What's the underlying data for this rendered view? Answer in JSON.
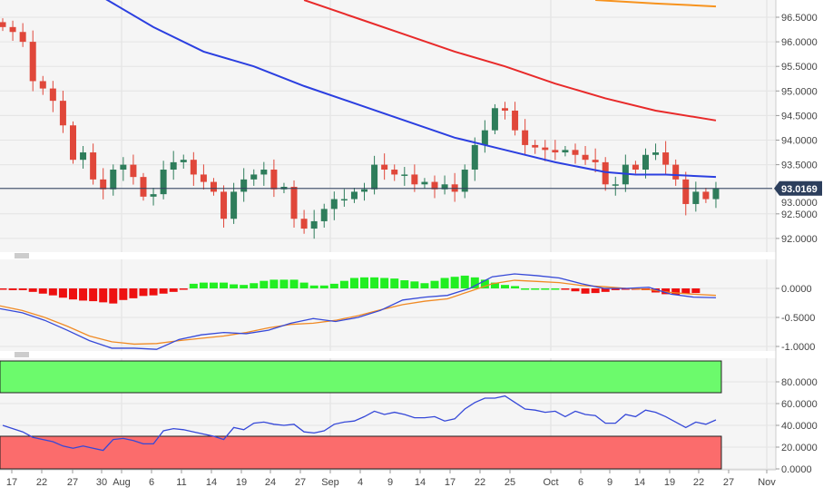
{
  "chart_data": [
    {
      "type": "candlestick",
      "title": "",
      "price_axis_ticks": [
        "96.5000",
        "96.0000",
        "95.5000",
        "95.0000",
        "94.5000",
        "94.0000",
        "93.5000",
        "93.0000",
        "92.5000",
        "92.0000"
      ],
      "price_axis_values": [
        96.5,
        96.0,
        95.5,
        95.0,
        94.5,
        94.0,
        93.5,
        93.0,
        92.5,
        92.0
      ],
      "ylim": [
        91.7,
        96.85
      ],
      "current_price_label": "93.0169",
      "current_price": 93.0169,
      "x_tick_labels": [
        "17",
        "22",
        "27",
        "30",
        "Aug",
        "6",
        "11",
        "14",
        "19",
        "24",
        "27",
        "Sep",
        "4",
        "9",
        "14",
        "17",
        "22",
        "25",
        "Oct",
        "6",
        "9",
        "14",
        "19",
        "22",
        "27",
        "Nov"
      ],
      "closes": [
        96.3,
        96.2,
        96.0,
        95.2,
        95.05,
        94.8,
        94.3,
        93.6,
        93.75,
        93.2,
        93.0,
        93.4,
        93.5,
        93.25,
        92.85,
        92.9,
        93.4,
        93.55,
        93.6,
        93.3,
        93.15,
        92.95,
        92.4,
        92.95,
        93.2,
        93.3,
        93.4,
        93.0,
        93.05,
        92.4,
        92.2,
        92.35,
        92.6,
        92.8,
        92.8,
        92.95,
        93.0,
        93.5,
        93.4,
        93.3,
        93.3,
        93.1,
        93.15,
        93.0,
        93.1,
        92.95,
        93.4,
        93.9,
        94.2,
        94.65,
        94.6,
        94.2,
        93.9,
        93.85,
        93.8,
        93.75,
        93.8,
        93.7,
        93.6,
        93.55,
        93.1,
        93.1,
        93.5,
        93.4,
        93.7,
        93.75,
        93.5,
        93.2,
        92.7,
        92.95,
        92.8,
        93.02
      ],
      "first_open": 96.4,
      "moving_averages": [
        {
          "name": "ma-blue",
          "color": "#2b3fe0",
          "points": [
            [
              10,
              96.9
            ],
            [
              15,
              96.3
            ],
            [
              20,
              95.8
            ],
            [
              25,
              95.5
            ],
            [
              30,
              95.1
            ],
            [
              35,
              94.75
            ],
            [
              40,
              94.4
            ],
            [
              45,
              94.05
            ],
            [
              50,
              93.8
            ],
            [
              55,
              93.55
            ],
            [
              60,
              93.35
            ],
            [
              63,
              93.3
            ],
            [
              66,
              93.3
            ],
            [
              71,
              93.25
            ]
          ]
        },
        {
          "name": "ma-red",
          "color": "#e82a2a",
          "points": [
            [
              30,
              96.85
            ],
            [
              35,
              96.5
            ],
            [
              40,
              96.15
            ],
            [
              45,
              95.8
            ],
            [
              50,
              95.5
            ],
            [
              55,
              95.15
            ],
            [
              60,
              94.85
            ],
            [
              65,
              94.6
            ],
            [
              71,
              94.4
            ]
          ]
        },
        {
          "name": "ma-orange",
          "color": "#f7931e",
          "points": [
            [
              59,
              96.85
            ],
            [
              65,
              96.78
            ],
            [
              71,
              96.72
            ]
          ]
        }
      ],
      "colors": {
        "up": "#2e7d5b",
        "down": "#e0473a",
        "price_line": "#2c3e5c"
      }
    },
    {
      "type": "macd",
      "axis_ticks": [
        "0.0000",
        "-0.5000",
        "-1.0000"
      ],
      "axis_values": [
        0,
        -0.5,
        -1.0
      ],
      "ylim": [
        -1.1,
        0.5
      ],
      "macd_line": [
        -0.35,
        -0.42,
        -0.55,
        -0.72,
        -0.9,
        -1.03,
        -1.03,
        -1.05,
        -0.88,
        -0.8,
        -0.76,
        -0.78,
        -0.72,
        -0.6,
        -0.52,
        -0.57,
        -0.5,
        -0.38,
        -0.2,
        -0.15,
        -0.12,
        0.0,
        0.2,
        0.25,
        0.22,
        0.18,
        0.08,
        0.0,
        0.0,
        0.02,
        -0.1,
        -0.15,
        -0.16
      ],
      "signal_line": [
        -0.3,
        -0.38,
        -0.5,
        -0.65,
        -0.82,
        -0.92,
        -0.96,
        -0.95,
        -0.9,
        -0.86,
        -0.82,
        -0.76,
        -0.68,
        -0.62,
        -0.6,
        -0.55,
        -0.47,
        -0.37,
        -0.28,
        -0.22,
        -0.18,
        -0.05,
        0.08,
        0.14,
        0.12,
        0.1,
        0.05,
        0.03,
        0.0,
        -0.02,
        -0.07,
        -0.1,
        -0.12
      ],
      "histogram": [
        -0.02,
        -0.03,
        -0.03,
        -0.06,
        -0.09,
        -0.12,
        -0.16,
        -0.19,
        -0.21,
        -0.22,
        -0.24,
        -0.26,
        -0.2,
        -0.17,
        -0.13,
        -0.12,
        -0.09,
        -0.06,
        -0.02,
        0.08,
        0.1,
        0.1,
        0.1,
        0.07,
        0.06,
        0.09,
        0.13,
        0.15,
        0.15,
        0.15,
        0.1,
        0.05,
        0.05,
        0.08,
        0.13,
        0.18,
        0.19,
        0.19,
        0.18,
        0.17,
        0.14,
        0.12,
        0.09,
        0.13,
        0.18,
        0.2,
        0.22,
        0.19,
        0.15,
        0.1,
        0.06,
        0.04,
        0.0,
        0.0,
        0.0,
        0.0,
        -0.02,
        -0.05,
        -0.09,
        -0.08,
        -0.06,
        -0.03,
        -0.02,
        -0.01,
        -0.03,
        -0.07,
        -0.1,
        -0.11,
        -0.09,
        -0.08
      ],
      "colors": {
        "macd": "#3548d8",
        "signal": "#f08a24",
        "pos": "#22ee22",
        "neg": "#ee1111"
      }
    },
    {
      "type": "rsi",
      "axis_ticks": [
        "80.0000",
        "60.0000",
        "40.0000",
        "20.0000",
        "0.0000"
      ],
      "axis_values": [
        80,
        60,
        40,
        20,
        0
      ],
      "ylim": [
        0,
        100
      ],
      "overbought": 70,
      "oversold": 30,
      "values": [
        40,
        37,
        34,
        29,
        27,
        25,
        21,
        19,
        21,
        19,
        17,
        27,
        28,
        26,
        23,
        23,
        35,
        37,
        36,
        34,
        32,
        30,
        27,
        38,
        36,
        42,
        43,
        41,
        40,
        41,
        34,
        33,
        35,
        41,
        43,
        44,
        48,
        53,
        50,
        52,
        50,
        47,
        47,
        48,
        44,
        46,
        55,
        61,
        65,
        65,
        67,
        61,
        55,
        54,
        52,
        53,
        48,
        53,
        50,
        49,
        42,
        42,
        50,
        48,
        54,
        52,
        48,
        43,
        38,
        43,
        41,
        45
      ],
      "colors": {
        "line": "#3548d8",
        "ob_zone": "#6cfa6c",
        "os_zone": "#fb6c6c"
      }
    }
  ]
}
